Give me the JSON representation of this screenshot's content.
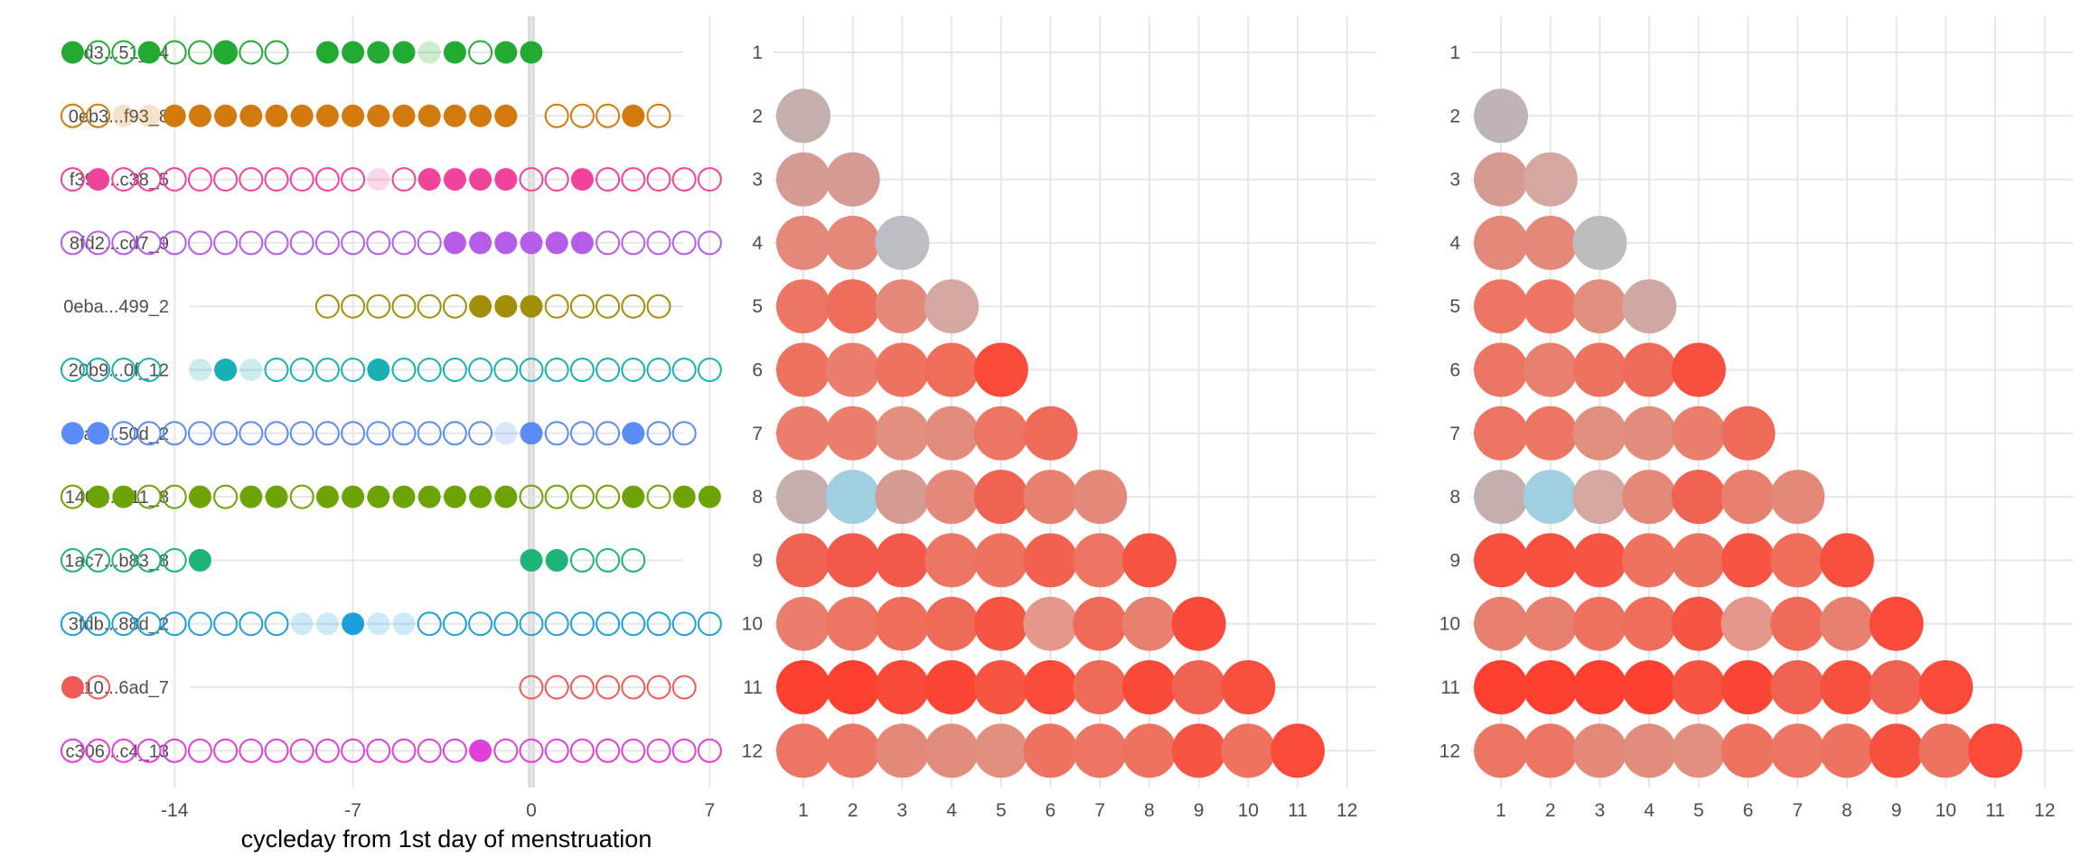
{
  "chart_data": [
    {
      "type": "scatter",
      "xlabel": "cycleday from 1st day of menstruation",
      "xlim": [
        -21,
        8
      ],
      "x_ticks": [
        -14,
        -7,
        0,
        7
      ],
      "grid": true,
      "menstruation_day": 0,
      "rows": [
        {
          "label": "14d3...51_14",
          "color": "#22AA33",
          "open": [
            -17,
            -16,
            -14,
            -13,
            -12,
            -11,
            -10,
            -2
          ],
          "filled": [
            -18,
            -15,
            -12,
            -8,
            -7,
            -6,
            -5,
            -3,
            -1,
            0
          ],
          "faded": [
            -4
          ]
        },
        {
          "label": "0eb3...f93_8",
          "color": "#D27A0E",
          "open": [
            -18,
            -17,
            1,
            2,
            3,
            5
          ],
          "filled": [
            -14,
            -13,
            -12,
            -11,
            -10,
            -9,
            -8,
            -7,
            -6,
            -5,
            -4,
            -3,
            -2,
            -1,
            4
          ],
          "faded": [
            -16,
            -15
          ]
        },
        {
          "label": "f39e...c38_5",
          "color": "#F0449C",
          "open": [
            -18,
            -16,
            -15,
            -14,
            -13,
            -12,
            -11,
            -10,
            -9,
            -8,
            -7,
            -5,
            0,
            1,
            3,
            4,
            5,
            6,
            7
          ],
          "filled": [
            -17,
            -4,
            -3,
            -2,
            -1,
            2
          ],
          "faded": [
            -6
          ]
        },
        {
          "label": "8fd2...cd7_9",
          "color": "#B55CE8",
          "open": [
            -18,
            -17,
            -16,
            -15,
            -14,
            -13,
            -12,
            -11,
            -10,
            -9,
            -8,
            -7,
            -6,
            -5,
            -4,
            3,
            4,
            5,
            6,
            7
          ],
          "filled": [
            -3,
            -2,
            -1,
            0,
            1,
            2
          ],
          "faded": []
        },
        {
          "label": "0eba...499_2",
          "color": "#A38E0A",
          "open": [
            -8,
            -7,
            -6,
            -5,
            -4,
            -3,
            1,
            2,
            3,
            4,
            5
          ],
          "filled": [
            -2,
            -1,
            0
          ],
          "faded": []
        },
        {
          "label": "20b9...0f_12",
          "color": "#18AFB5",
          "open": [
            -18,
            -17,
            -16,
            -15,
            -10,
            -9,
            -8,
            -7,
            -5,
            -4,
            -3,
            -2,
            -1,
            0,
            1,
            2,
            3,
            4,
            5,
            6,
            7
          ],
          "filled": [
            -12,
            -6
          ],
          "faded": [
            -13,
            -11
          ]
        },
        {
          "label": "54a3...50d_2",
          "color": "#5B8CF5",
          "open": [
            -16,
            -15,
            -14,
            -13,
            -12,
            -11,
            -10,
            -9,
            -8,
            -7,
            -6,
            -5,
            -4,
            -3,
            -2,
            1,
            2,
            3,
            5,
            6
          ],
          "filled": [
            -18,
            -17,
            0,
            4
          ],
          "faded": [
            -1
          ]
        },
        {
          "label": "1407...a11_8",
          "color": "#6EA306",
          "open": [
            -18,
            -15,
            -14,
            -12,
            -9,
            0,
            1,
            2,
            3,
            5
          ],
          "filled": [
            -17,
            -16,
            -13,
            -11,
            -10,
            -8,
            -7,
            -6,
            -5,
            -4,
            -3,
            -2,
            -1,
            4,
            6,
            7
          ],
          "faded": []
        },
        {
          "label": "1ac7...b83_8",
          "color": "#1DB478",
          "open": [
            -18,
            -17,
            -16,
            -15,
            -14,
            2,
            3,
            4
          ],
          "filled": [
            -13,
            0,
            1
          ],
          "faded": []
        },
        {
          "label": "3fdb...88d_2",
          "color": "#1C9FDB",
          "open": [
            -18,
            -17,
            -16,
            -15,
            -14,
            -13,
            -12,
            -11,
            -10,
            -4,
            -3,
            -2,
            -1,
            0,
            1,
            2,
            3,
            4,
            5,
            6,
            7
          ],
          "filled": [
            -7
          ],
          "faded": [
            -9,
            -8,
            -6,
            -5
          ]
        },
        {
          "label": "0110...6ad_7",
          "color": "#EE5B55",
          "open": [
            -17,
            0,
            1,
            2,
            3,
            4,
            5,
            6
          ],
          "filled": [
            -18
          ],
          "faded": []
        },
        {
          "label": "c306...c4_13",
          "color": "#E040D8",
          "open": [
            -18,
            -17,
            -16,
            -15,
            -14,
            -13,
            -12,
            -11,
            -10,
            -9,
            -8,
            -7,
            -6,
            -5,
            -4,
            -3,
            -1,
            0,
            1,
            2,
            3,
            4,
            5,
            6,
            7
          ],
          "filled": [
            -2
          ],
          "faded": []
        }
      ]
    },
    {
      "type": "heatmap",
      "x_ticks": [
        1,
        2,
        3,
        4,
        5,
        6,
        7,
        8,
        9,
        10,
        11,
        12
      ],
      "y_ticks": [
        1,
        2,
        3,
        4,
        5,
        6,
        7,
        8,
        9,
        10,
        11,
        12
      ],
      "xlim": [
        0.5,
        12.5
      ],
      "ylim": [
        0.5,
        12.5
      ],
      "grid": true,
      "rows": [
        {
          "y": 2,
          "colors": [
            "#C4AEAE"
          ]
        },
        {
          "y": 3,
          "colors": [
            "#D59A92",
            "#D59A92"
          ]
        },
        {
          "y": 4,
          "colors": [
            "#E4897A",
            "#E4897A",
            "#BDBDC4"
          ]
        },
        {
          "y": 5,
          "colors": [
            "#EC7563",
            "#EE6D5B",
            "#E4897A",
            "#D4A7A0"
          ]
        },
        {
          "y": 6,
          "colors": [
            "#EE7260",
            "#EB7D6C",
            "#EE7260",
            "#EE6D5B",
            "#FA4A39"
          ]
        },
        {
          "y": 7,
          "colors": [
            "#EB7D6C",
            "#EB7D6C",
            "#E1907F",
            "#E28C7D",
            "#EC7563",
            "#F06A59"
          ]
        },
        {
          "y": 8,
          "colors": [
            "#C4AEAE",
            "#9FCFE0",
            "#D59A92",
            "#E4897A",
            "#F06352",
            "#E8806F",
            "#E4897A"
          ]
        },
        {
          "y": 9,
          "colors": [
            "#F06352",
            "#F2594A",
            "#F2594A",
            "#EC7563",
            "#EE7260",
            "#F26050",
            "#EC7563",
            "#F55443"
          ]
        },
        {
          "y": 10,
          "colors": [
            "#EB7D6C",
            "#EC7563",
            "#EE6D5B",
            "#F06A59",
            "#F65543",
            "#E4978A",
            "#F06A59",
            "#E8806F",
            "#F94A39"
          ]
        },
        {
          "y": 11,
          "colors": [
            "#FD4030",
            "#FD4030",
            "#F94A39",
            "#FB4535",
            "#F65543",
            "#FC4A38",
            "#F06A59",
            "#F94A39",
            "#F06352",
            "#F8503E"
          ]
        },
        {
          "y": 12,
          "colors": [
            "#EC7563",
            "#EC7563",
            "#E4897A",
            "#E28C7D",
            "#E1907F",
            "#EE7260",
            "#EC7563",
            "#EE7260",
            "#F65543",
            "#EE7260",
            "#FC4A3A"
          ]
        }
      ]
    },
    {
      "type": "heatmap",
      "x_ticks": [
        1,
        2,
        3,
        4,
        5,
        6,
        7,
        8,
        9,
        10,
        11,
        12
      ],
      "y_ticks": [
        1,
        2,
        3,
        4,
        5,
        6,
        7,
        8,
        9,
        10,
        11,
        12
      ],
      "xlim": [
        0.5,
        12.5
      ],
      "ylim": [
        0.5,
        12.5
      ],
      "grid": true,
      "rows": [
        {
          "y": 2,
          "colors": [
            "#BFB4B4"
          ]
        },
        {
          "y": 3,
          "colors": [
            "#D59A92",
            "#D4A7A0"
          ]
        },
        {
          "y": 4,
          "colors": [
            "#E4897A",
            "#E4897A",
            "#BDBDBD"
          ]
        },
        {
          "y": 5,
          "colors": [
            "#EC7563",
            "#EC7563",
            "#E1907F",
            "#D0A8A3"
          ]
        },
        {
          "y": 6,
          "colors": [
            "#EC7563",
            "#E8806F",
            "#EE7260",
            "#F06A59",
            "#F8503E"
          ]
        },
        {
          "y": 7,
          "colors": [
            "#EC7563",
            "#EC7563",
            "#E1907F",
            "#E28C7D",
            "#EB7D6C",
            "#F06A59"
          ]
        },
        {
          "y": 8,
          "colors": [
            "#C4AEAE",
            "#9FCFE0",
            "#D4A7A0",
            "#E4897A",
            "#F06352",
            "#E8806F",
            "#E4897A"
          ]
        },
        {
          "y": 9,
          "colors": [
            "#F8503E",
            "#F8503E",
            "#F65543",
            "#EE7260",
            "#EE7260",
            "#F65543",
            "#EE6D5B",
            "#F8503E"
          ]
        },
        {
          "y": 10,
          "colors": [
            "#E8806F",
            "#E8806F",
            "#EE7260",
            "#EE6D5B",
            "#F65543",
            "#E4978A",
            "#F06A59",
            "#E8806F",
            "#FA4A39"
          ]
        },
        {
          "y": 11,
          "colors": [
            "#FD4030",
            "#FD4030",
            "#FD4030",
            "#FD4030",
            "#F65543",
            "#FB4535",
            "#F06352",
            "#F8503E",
            "#F06352",
            "#FA4A39"
          ]
        },
        {
          "y": 12,
          "colors": [
            "#EC7563",
            "#EC7563",
            "#E4897A",
            "#E28C7D",
            "#E1907F",
            "#EE7260",
            "#EC7563",
            "#EE7260",
            "#F8503E",
            "#EE7260",
            "#FC4A3A"
          ]
        }
      ]
    }
  ]
}
